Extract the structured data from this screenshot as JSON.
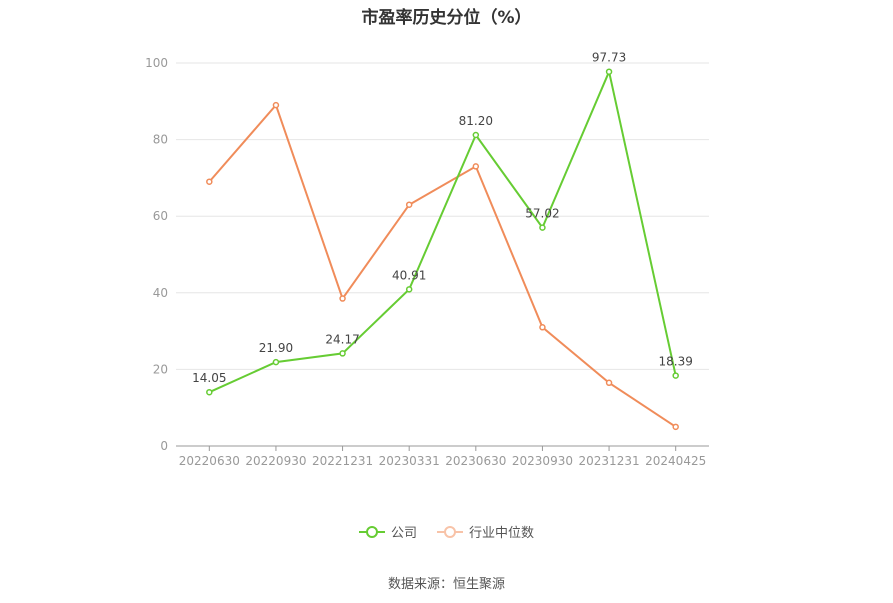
{
  "title": "市盈率历史分位（%）",
  "source": "数据来源：恒生聚源",
  "chart_data": {
    "type": "line",
    "categories": [
      "20220630",
      "20220930",
      "20221231",
      "20230331",
      "20230630",
      "20230930",
      "20231231",
      "20240425"
    ],
    "ylim": [
      0,
      100
    ],
    "yticks": [
      0,
      20,
      40,
      60,
      80,
      100
    ],
    "grid": true,
    "legend_position": "bottom",
    "series": [
      {
        "name": "公司",
        "color": "#66cc33",
        "values": [
          14.05,
          21.9,
          24.17,
          40.91,
          81.2,
          57.02,
          97.73,
          18.39
        ],
        "labels": [
          "14.05",
          "21.90",
          "24.17",
          "40.91",
          "81.20",
          "57.02",
          "97.73",
          "18.39"
        ]
      },
      {
        "name": "行业中位数",
        "color": "#f08c5a",
        "values": [
          69.0,
          89.0,
          38.5,
          63.0,
          73.0,
          31.0,
          16.5,
          5.0
        ]
      }
    ]
  }
}
